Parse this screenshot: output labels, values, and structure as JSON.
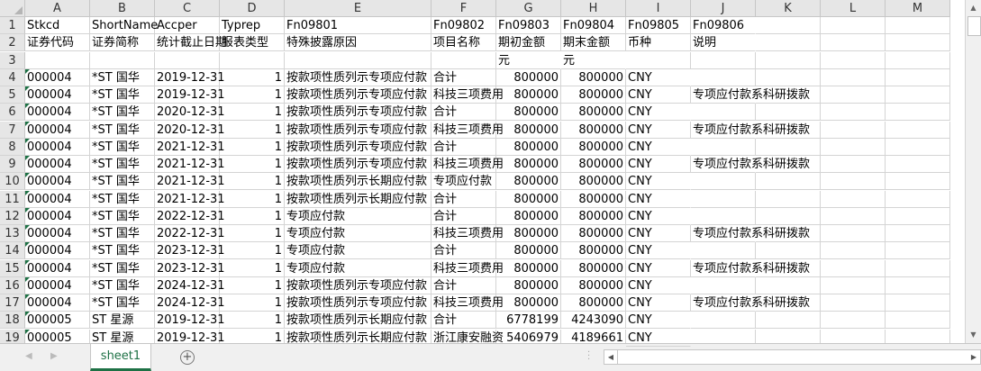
{
  "columns": [
    "A",
    "B",
    "C",
    "D",
    "E",
    "F",
    "G",
    "H",
    "I",
    "J",
    "K",
    "L",
    "M"
  ],
  "rows": [
    [
      "Stkcd",
      "ShortName",
      "Accper",
      "Typrep",
      "Fn09801",
      "Fn09802",
      "Fn09803",
      "Fn09804",
      "Fn09805",
      "Fn09806",
      "",
      "",
      ""
    ],
    [
      "证券代码",
      "证券简称",
      "统计截止日期",
      "报表类型",
      "特殊披露原因",
      "项目名称",
      "期初金额",
      "期末金额",
      "币种",
      "说明",
      "",
      "",
      ""
    ],
    [
      "",
      "",
      "",
      "",
      "",
      "",
      "元",
      "元",
      "",
      "",
      "",
      "",
      ""
    ],
    [
      "000004",
      "*ST 国华",
      "2019-12-31",
      "1",
      "按款项性质列示专项应付款",
      "合计",
      "800000",
      "800000",
      "CNY",
      "",
      "",
      "",
      ""
    ],
    [
      "000004",
      "*ST 国华",
      "2019-12-31",
      "1",
      "按款项性质列示专项应付款",
      "科技三项费用",
      "800000",
      "800000",
      "CNY",
      "专项应付款系科研拨款",
      "",
      "",
      ""
    ],
    [
      "000004",
      "*ST 国华",
      "2020-12-31",
      "1",
      "按款项性质列示专项应付款",
      "合计",
      "800000",
      "800000",
      "CNY",
      "",
      "",
      "",
      ""
    ],
    [
      "000004",
      "*ST 国华",
      "2020-12-31",
      "1",
      "按款项性质列示专项应付款",
      "科技三项费用",
      "800000",
      "800000",
      "CNY",
      "专项应付款系科研拨款",
      "",
      "",
      ""
    ],
    [
      "000004",
      "*ST 国华",
      "2021-12-31",
      "1",
      "按款项性质列示专项应付款",
      "合计",
      "800000",
      "800000",
      "CNY",
      "",
      "",
      "",
      ""
    ],
    [
      "000004",
      "*ST 国华",
      "2021-12-31",
      "1",
      "按款项性质列示专项应付款",
      "科技三项费用",
      "800000",
      "800000",
      "CNY",
      "专项应付款系科研拨款",
      "",
      "",
      ""
    ],
    [
      "000004",
      "*ST 国华",
      "2021-12-31",
      "1",
      "按款项性质列示长期应付款",
      "专项应付款",
      "800000",
      "800000",
      "CNY",
      "",
      "",
      "",
      ""
    ],
    [
      "000004",
      "*ST 国华",
      "2021-12-31",
      "1",
      "按款项性质列示长期应付款",
      "合计",
      "800000",
      "800000",
      "CNY",
      "",
      "",
      "",
      ""
    ],
    [
      "000004",
      "*ST 国华",
      "2022-12-31",
      "1",
      "专项应付款",
      "合计",
      "800000",
      "800000",
      "CNY",
      "",
      "",
      "",
      ""
    ],
    [
      "000004",
      "*ST 国华",
      "2022-12-31",
      "1",
      "专项应付款",
      "科技三项费用",
      "800000",
      "800000",
      "CNY",
      "专项应付款系科研拨款",
      "",
      "",
      ""
    ],
    [
      "000004",
      "*ST 国华",
      "2023-12-31",
      "1",
      "专项应付款",
      "合计",
      "800000",
      "800000",
      "CNY",
      "",
      "",
      "",
      ""
    ],
    [
      "000004",
      "*ST 国华",
      "2023-12-31",
      "1",
      "专项应付款",
      "科技三项费用",
      "800000",
      "800000",
      "CNY",
      "专项应付款系科研拨款",
      "",
      "",
      ""
    ],
    [
      "000004",
      "*ST 国华",
      "2024-12-31",
      "1",
      "按款项性质列示专项应付款",
      "合计",
      "800000",
      "800000",
      "CNY",
      "",
      "",
      "",
      ""
    ],
    [
      "000004",
      "*ST 国华",
      "2024-12-31",
      "1",
      "按款项性质列示专项应付款",
      "科技三项费用",
      "800000",
      "800000",
      "CNY",
      "专项应付款系科研拨款",
      "",
      "",
      ""
    ],
    [
      "000005",
      "ST 星源",
      "2019-12-31",
      "1",
      "按款项性质列示长期应付款",
      "合计",
      "6778199",
      "4243090",
      "CNY",
      "",
      "",
      "",
      ""
    ],
    [
      "000005",
      "ST 星源",
      "2019-12-31",
      "1",
      "按款项性质列示长期应付款",
      "浙江康安融资",
      "5406979",
      "4189661",
      "CNY",
      "",
      "",
      "",
      ""
    ]
  ],
  "sheet_tab": "sheet1",
  "add_sheet_icon": "plus-circle-icon",
  "accent_color": "#1e7145"
}
